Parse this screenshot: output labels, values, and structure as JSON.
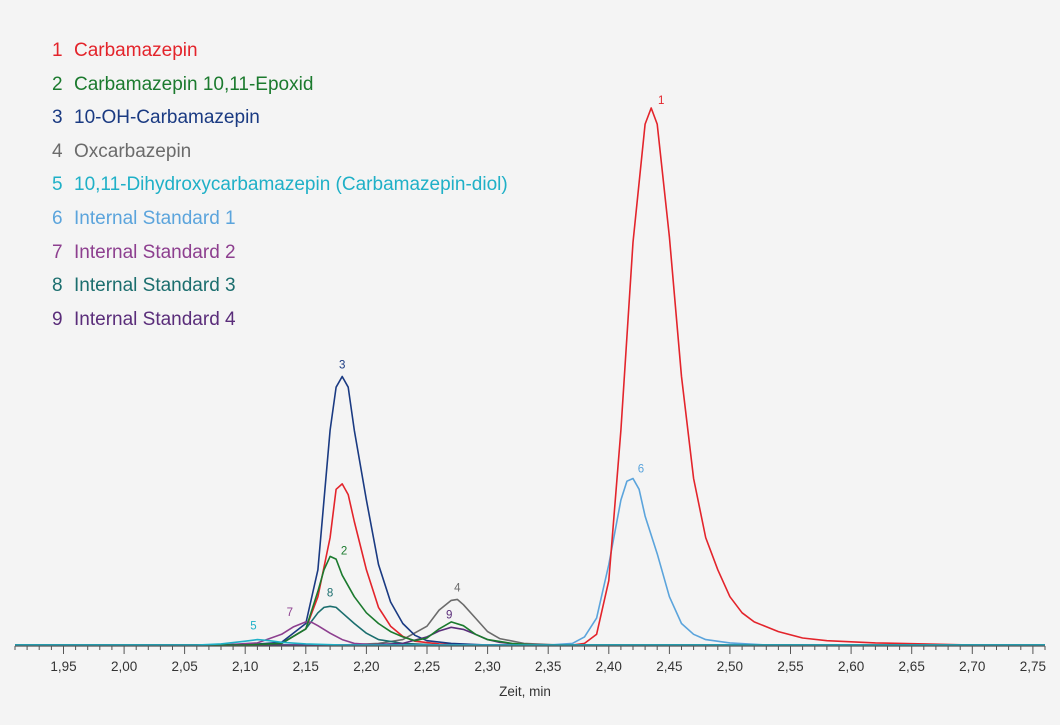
{
  "chart_data": {
    "type": "line",
    "xlabel": "Zeit, min",
    "ylabel": "",
    "xlim": [
      1.91,
      2.76
    ],
    "ylim": [
      0,
      100
    ],
    "x_ticks": [
      "1,95",
      "2,00",
      "2,05",
      "2,10",
      "2,15",
      "2,20",
      "2,25",
      "2,30",
      "2,35",
      "2,40",
      "2,45",
      "2,50",
      "2,55",
      "2,60",
      "2,65",
      "2,70",
      "2,75"
    ],
    "grid": false,
    "legend_position": "top-left",
    "series": [
      {
        "id": "1",
        "name": "Carbamazepin",
        "color": "#e3242b",
        "peak_label": "1",
        "points": [
          [
            2.1,
            0
          ],
          [
            2.13,
            0.3
          ],
          [
            2.15,
            3
          ],
          [
            2.16,
            9
          ],
          [
            2.17,
            20
          ],
          [
            2.175,
            29
          ],
          [
            2.18,
            30
          ],
          [
            2.185,
            28
          ],
          [
            2.19,
            23
          ],
          [
            2.2,
            14
          ],
          [
            2.21,
            7
          ],
          [
            2.22,
            3.5
          ],
          [
            2.23,
            1.6
          ],
          [
            2.24,
            0.7
          ],
          [
            2.26,
            0.2
          ],
          [
            2.28,
            0
          ],
          [
            2.37,
            0
          ],
          [
            2.38,
            0.3
          ],
          [
            2.39,
            2
          ],
          [
            2.4,
            12
          ],
          [
            2.41,
            40
          ],
          [
            2.42,
            75
          ],
          [
            2.43,
            97
          ],
          [
            2.435,
            100
          ],
          [
            2.44,
            97
          ],
          [
            2.45,
            76
          ],
          [
            2.46,
            50
          ],
          [
            2.47,
            31
          ],
          [
            2.48,
            20
          ],
          [
            2.49,
            14
          ],
          [
            2.5,
            9
          ],
          [
            2.51,
            6
          ],
          [
            2.52,
            4.3
          ],
          [
            2.54,
            2.5
          ],
          [
            2.56,
            1.3
          ],
          [
            2.58,
            0.8
          ],
          [
            2.62,
            0.4
          ],
          [
            2.66,
            0.2
          ],
          [
            2.7,
            0
          ]
        ]
      },
      {
        "id": "2",
        "name": "Carbamazepin 10,11-Epoxid",
        "color": "#1b7a2e",
        "peak_label": "2",
        "points": [
          [
            2.1,
            0
          ],
          [
            2.13,
            0.3
          ],
          [
            2.15,
            3
          ],
          [
            2.16,
            10
          ],
          [
            2.165,
            14
          ],
          [
            2.17,
            16.5
          ],
          [
            2.175,
            16
          ],
          [
            2.18,
            13
          ],
          [
            2.19,
            9
          ],
          [
            2.2,
            6
          ],
          [
            2.21,
            4
          ],
          [
            2.22,
            2.5
          ],
          [
            2.23,
            1.5
          ],
          [
            2.24,
            0.8
          ],
          [
            2.25,
            1.3
          ],
          [
            2.26,
            3
          ],
          [
            2.27,
            4.3
          ],
          [
            2.28,
            3.6
          ],
          [
            2.29,
            2
          ],
          [
            2.3,
            1
          ],
          [
            2.32,
            0.3
          ],
          [
            2.34,
            0
          ]
        ]
      },
      {
        "id": "3",
        "name": "10-OH-Carbamazepin",
        "color": "#1a3a82",
        "peak_label": "3",
        "points": [
          [
            2.1,
            0
          ],
          [
            2.13,
            0.5
          ],
          [
            2.15,
            4
          ],
          [
            2.16,
            14
          ],
          [
            2.17,
            40
          ],
          [
            2.175,
            48
          ],
          [
            2.18,
            50
          ],
          [
            2.185,
            48
          ],
          [
            2.19,
            40
          ],
          [
            2.2,
            27
          ],
          [
            2.21,
            15
          ],
          [
            2.22,
            8
          ],
          [
            2.23,
            4
          ],
          [
            2.24,
            1.8
          ],
          [
            2.25,
            0.8
          ],
          [
            2.27,
            0.3
          ],
          [
            2.3,
            0
          ]
        ]
      },
      {
        "id": "4",
        "name": "Oxcarbazepin",
        "color": "#6b6b6b",
        "peak_label": "4",
        "points": [
          [
            2.18,
            0
          ],
          [
            2.21,
            0.3
          ],
          [
            2.23,
            1
          ],
          [
            2.25,
            3.5
          ],
          [
            2.26,
            6.5
          ],
          [
            2.27,
            8.3
          ],
          [
            2.275,
            8.5
          ],
          [
            2.28,
            7.5
          ],
          [
            2.29,
            5
          ],
          [
            2.3,
            2.5
          ],
          [
            2.31,
            1.2
          ],
          [
            2.33,
            0.3
          ],
          [
            2.36,
            0
          ]
        ]
      },
      {
        "id": "5",
        "name": "10,11-Dihydroxycarbamazepin (Carbamazepin-diol)",
        "color": "#1fb0c7",
        "peak_label": "5",
        "points": [
          [
            2.06,
            0
          ],
          [
            2.08,
            0.2
          ],
          [
            2.1,
            0.7
          ],
          [
            2.11,
            1
          ],
          [
            2.12,
            0.8
          ],
          [
            2.13,
            0.5
          ],
          [
            2.15,
            0.2
          ],
          [
            2.18,
            0
          ]
        ]
      },
      {
        "id": "6",
        "name": "Internal Standard 1",
        "color": "#5ba4dc",
        "peak_label": "6",
        "points": [
          [
            2.35,
            0
          ],
          [
            2.37,
            0.3
          ],
          [
            2.38,
            1.5
          ],
          [
            2.39,
            5
          ],
          [
            2.4,
            15
          ],
          [
            2.41,
            27
          ],
          [
            2.415,
            30.5
          ],
          [
            2.42,
            31
          ],
          [
            2.425,
            29
          ],
          [
            2.43,
            24
          ],
          [
            2.44,
            17
          ],
          [
            2.45,
            9
          ],
          [
            2.46,
            4
          ],
          [
            2.47,
            2
          ],
          [
            2.48,
            1
          ],
          [
            2.5,
            0.4
          ],
          [
            2.53,
            0
          ]
        ]
      },
      {
        "id": "7",
        "name": "Internal Standard 2",
        "color": "#8d3f8f",
        "peak_label": "7",
        "points": [
          [
            2.08,
            0
          ],
          [
            2.11,
            0.4
          ],
          [
            2.13,
            2
          ],
          [
            2.14,
            3.4
          ],
          [
            2.15,
            4.3
          ],
          [
            2.155,
            4.2
          ],
          [
            2.16,
            3.6
          ],
          [
            2.17,
            2.2
          ],
          [
            2.18,
            1
          ],
          [
            2.19,
            0.3
          ],
          [
            2.21,
            0
          ]
        ]
      },
      {
        "id": "8",
        "name": "Internal Standard 3",
        "color": "#1b6e6e",
        "peak_label": "8",
        "points": [
          [
            2.1,
            0
          ],
          [
            2.13,
            0.3
          ],
          [
            2.15,
            3
          ],
          [
            2.16,
            6
          ],
          [
            2.165,
            7
          ],
          [
            2.17,
            7.2
          ],
          [
            2.175,
            7
          ],
          [
            2.18,
            6
          ],
          [
            2.19,
            4
          ],
          [
            2.2,
            2.2
          ],
          [
            2.21,
            1
          ],
          [
            2.23,
            0.3
          ],
          [
            2.26,
            0
          ]
        ]
      },
      {
        "id": "9",
        "name": "Internal Standard 4",
        "color": "#5a2d7a",
        "peak_label": "9",
        "points": [
          [
            2.2,
            0
          ],
          [
            2.23,
            0.3
          ],
          [
            2.25,
            1.5
          ],
          [
            2.26,
            2.6
          ],
          [
            2.27,
            3.3
          ],
          [
            2.28,
            2.9
          ],
          [
            2.29,
            2
          ],
          [
            2.3,
            1
          ],
          [
            2.31,
            0.5
          ],
          [
            2.33,
            0
          ]
        ]
      }
    ]
  }
}
